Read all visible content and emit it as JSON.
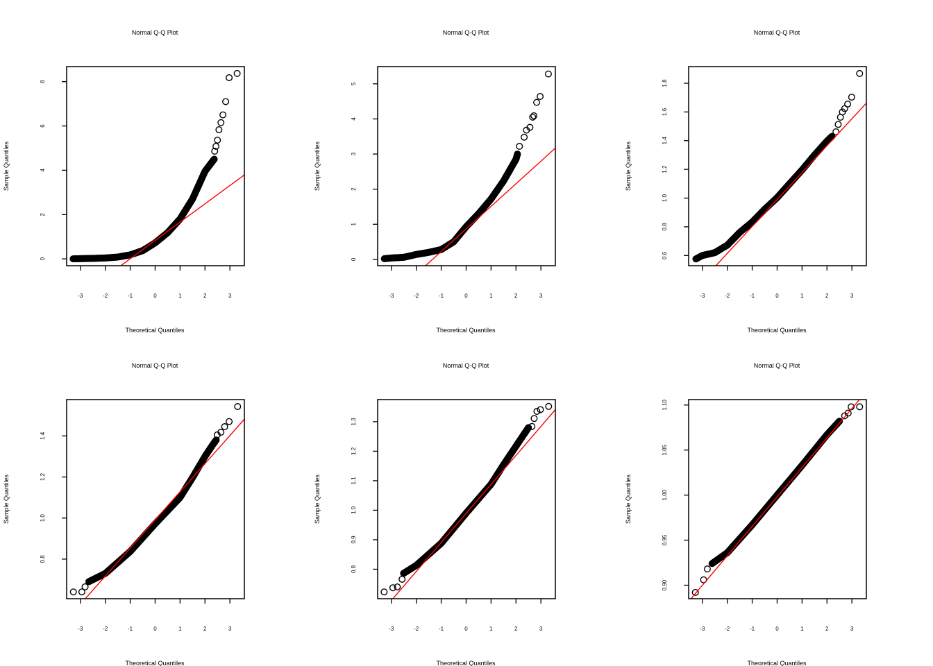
{
  "chart_data": [
    {
      "type": "scatter",
      "title": "Normal Q-Q Plot",
      "xlabel": "Theoretical Quantiles",
      "ylabel": "Sample Quantiles",
      "xlim": [
        -3.55,
        3.58
      ],
      "ylim": [
        -0.31,
        8.68
      ],
      "xticks": [
        -3,
        -2,
        -1,
        0,
        1,
        2,
        3
      ],
      "yticks": [
        "0",
        "2",
        "4",
        "6",
        "8"
      ],
      "curve": [
        [
          -3.29,
          0
        ],
        [
          -3,
          0.01
        ],
        [
          -2.5,
          0.02
        ],
        [
          -2,
          0.04
        ],
        [
          -1.5,
          0.08
        ],
        [
          -1,
          0.18
        ],
        [
          -0.5,
          0.37
        ],
        [
          0,
          0.72
        ],
        [
          0.5,
          1.18
        ],
        [
          1,
          1.8
        ],
        [
          1.5,
          2.7
        ],
        [
          2,
          3.95
        ],
        [
          2.2,
          4.25
        ],
        [
          2.37,
          4.5
        ]
      ],
      "outliers": [
        [
          2.39,
          4.86
        ],
        [
          2.44,
          5.08
        ],
        [
          2.5,
          5.36
        ],
        [
          2.56,
          5.83
        ],
        [
          2.64,
          6.15
        ],
        [
          2.72,
          6.5
        ],
        [
          2.83,
          7.1
        ],
        [
          2.97,
          8.18
        ],
        [
          3.29,
          8.37
        ]
      ],
      "qqline": {
        "intercept": 0.83,
        "slope": 0.827
      }
    },
    {
      "type": "scatter",
      "title": "Normal Q-Q Plot",
      "xlabel": "Theoretical Quantiles",
      "ylabel": "Sample Quantiles",
      "xlim": [
        -3.55,
        3.58
      ],
      "ylim": [
        -0.18,
        5.49
      ],
      "xticks": [
        -3,
        -2,
        -1,
        0,
        1,
        2,
        3
      ],
      "yticks": [
        "0",
        "1",
        "2",
        "3",
        "4",
        "5"
      ],
      "curve": [
        [
          -3.28,
          0.02
        ],
        [
          -3,
          0.04
        ],
        [
          -2.5,
          0.06
        ],
        [
          -2,
          0.14
        ],
        [
          -1.5,
          0.2
        ],
        [
          -1,
          0.28
        ],
        [
          -0.5,
          0.5
        ],
        [
          0,
          0.93
        ],
        [
          0.5,
          1.3
        ],
        [
          1,
          1.72
        ],
        [
          1.5,
          2.23
        ],
        [
          2,
          2.85
        ],
        [
          2.06,
          3.0
        ]
      ],
      "outliers": [
        [
          2.14,
          3.22
        ],
        [
          2.33,
          3.48
        ],
        [
          2.42,
          3.68
        ],
        [
          2.56,
          3.76
        ],
        [
          2.67,
          4.05
        ],
        [
          2.72,
          4.09
        ],
        [
          2.83,
          4.47
        ],
        [
          2.97,
          4.64
        ],
        [
          3.3,
          5.28
        ]
      ],
      "qqline": {
        "intercept": 0.867,
        "slope": 0.643
      }
    },
    {
      "type": "scatter",
      "title": "Normal Q-Q Plot",
      "xlabel": "Theoretical Quantiles",
      "ylabel": "Sample Quantiles",
      "xlim": [
        -3.55,
        3.58
      ],
      "ylim": [
        0.529,
        1.916
      ],
      "xticks": [
        -3,
        -2,
        -1,
        0,
        1,
        2,
        3
      ],
      "yticks": [
        "0.6",
        "0.8",
        "1.0",
        "1.2",
        "1.4",
        "1.6",
        "1.8"
      ],
      "curve": [
        [
          -3.26,
          0.576
        ],
        [
          -3,
          0.6
        ],
        [
          -2.5,
          0.62
        ],
        [
          -2,
          0.672
        ],
        [
          -1.5,
          0.761
        ],
        [
          -1,
          0.833
        ],
        [
          -0.5,
          0.922
        ],
        [
          0,
          1.003
        ],
        [
          0.5,
          1.1
        ],
        [
          1,
          1.196
        ],
        [
          1.5,
          1.3
        ],
        [
          2,
          1.397
        ],
        [
          2.2,
          1.43
        ]
      ],
      "outliers": [
        [
          2.36,
          1.462
        ],
        [
          2.45,
          1.513
        ],
        [
          2.54,
          1.563
        ],
        [
          2.62,
          1.6
        ],
        [
          2.71,
          1.623
        ],
        [
          2.83,
          1.655
        ],
        [
          2.99,
          1.703
        ],
        [
          3.31,
          1.868
        ]
      ],
      "qqline": {
        "intercept": 0.99,
        "slope": 0.1875
      }
    },
    {
      "type": "scatter",
      "title": "Normal Q-Q Plot",
      "xlabel": "Theoretical Quantiles",
      "ylabel": "Sample Quantiles",
      "xlim": [
        -3.55,
        3.58
      ],
      "ylim": [
        0.607,
        1.577
      ],
      "xticks": [
        -3,
        -2,
        -1,
        0,
        1,
        2,
        3
      ],
      "yticks": [
        "0.8",
        "1.0",
        "1.2",
        "1.4"
      ],
      "curve": [
        [
          -2.66,
          0.69
        ],
        [
          -2,
          0.73
        ],
        [
          -1,
          0.837
        ],
        [
          0,
          0.972
        ],
        [
          1,
          1.1
        ],
        [
          1.5,
          1.197
        ],
        [
          2,
          1.3
        ],
        [
          2.3,
          1.355
        ],
        [
          2.45,
          1.38
        ]
      ],
      "outliers": [
        [
          -3.28,
          0.64
        ],
        [
          -2.94,
          0.64
        ],
        [
          -2.81,
          0.665
        ],
        [
          2.49,
          1.405
        ],
        [
          2.64,
          1.418
        ],
        [
          2.79,
          1.445
        ],
        [
          2.97,
          1.47
        ],
        [
          3.31,
          1.543
        ]
      ],
      "qqline": {
        "intercept": 0.991,
        "slope": 0.137
      }
    },
    {
      "type": "scatter",
      "title": "Normal Q-Q Plot",
      "xlabel": "Theoretical Quantiles",
      "ylabel": "Sample Quantiles",
      "xlim": [
        -3.55,
        3.58
      ],
      "ylim": [
        0.7,
        1.375
      ],
      "xticks": [
        -3,
        -2,
        -1,
        0,
        1,
        2,
        3
      ],
      "yticks": [
        "0.8",
        "0.9",
        "1.0",
        "1.1",
        "1.2",
        "1.3"
      ],
      "curve": [
        [
          -2.51,
          0.786
        ],
        [
          -2,
          0.813
        ],
        [
          -1,
          0.888
        ],
        [
          0,
          0.99
        ],
        [
          1,
          1.088
        ],
        [
          1.5,
          1.154
        ],
        [
          2,
          1.217
        ],
        [
          2.5,
          1.28
        ]
      ],
      "outliers": [
        [
          -3.29,
          0.723
        ],
        [
          -2.94,
          0.737
        ],
        [
          -2.76,
          0.74
        ],
        [
          -2.57,
          0.766
        ],
        [
          2.64,
          1.284
        ],
        [
          2.73,
          1.311
        ],
        [
          2.84,
          1.335
        ],
        [
          2.98,
          1.341
        ],
        [
          3.31,
          1.352
        ]
      ],
      "qqline": {
        "intercept": 0.989,
        "slope": 0.0983
      }
    },
    {
      "type": "scatter",
      "title": "Normal Q-Q Plot",
      "xlabel": "Theoretical Quantiles",
      "ylabel": "Sample Quantiles",
      "xlim": [
        -3.55,
        3.58
      ],
      "ylim": [
        0.885,
        1.106
      ],
      "xticks": [
        -3,
        -2,
        -1,
        0,
        1,
        2,
        3
      ],
      "yticks": [
        "0.90",
        "0.95",
        "1.00",
        "1.05",
        "1.10"
      ],
      "curve": [
        [
          -2.61,
          0.924
        ],
        [
          -2,
          0.936
        ],
        [
          -1,
          0.967
        ],
        [
          0,
          1.0
        ],
        [
          1,
          1.033
        ],
        [
          2,
          1.067
        ],
        [
          2.5,
          1.082
        ]
      ],
      "outliers": [
        [
          -3.28,
          0.892
        ],
        [
          -2.95,
          0.906
        ],
        [
          -2.8,
          0.918
        ],
        [
          2.71,
          1.088
        ],
        [
          2.85,
          1.091
        ],
        [
          2.97,
          1.098
        ],
        [
          3.31,
          1.098
        ]
      ],
      "qqline": {
        "intercept": 0.998,
        "slope": 0.0327
      }
    }
  ],
  "colors": {
    "points": "#000000",
    "qqline": "#ff0000"
  }
}
